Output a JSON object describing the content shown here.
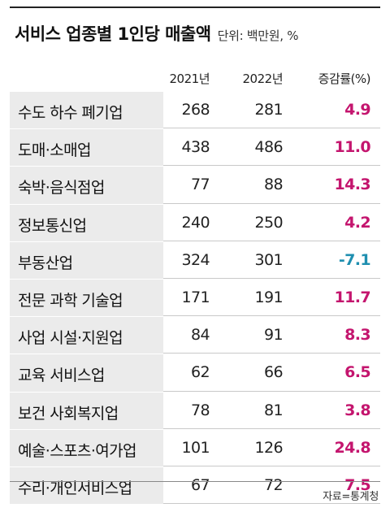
{
  "title": "서비스 업종별 1인당 매출액",
  "unit": "단위: 백만원, %",
  "source": "자료=통계청",
  "colors": {
    "positive": "#c4156e",
    "negative": "#1f8fb0",
    "row_shade": "#ebebeb"
  },
  "chart_data": {
    "type": "table",
    "title": "서비스 업종별 1인당 매출액",
    "columns": [
      "",
      "2021년",
      "2022년",
      "증감률(%)"
    ],
    "rows": [
      {
        "name": "수도 하수 폐기업",
        "y2021": "268",
        "y2022": "281",
        "rate": "4.9"
      },
      {
        "name": "도매·소매업",
        "y2021": "438",
        "y2022": "486",
        "rate": "11.0"
      },
      {
        "name": "숙박·음식점업",
        "y2021": "77",
        "y2022": "88",
        "rate": "14.3"
      },
      {
        "name": "정보통신업",
        "y2021": "240",
        "y2022": "250",
        "rate": "4.2"
      },
      {
        "name": "부동산업",
        "y2021": "324",
        "y2022": "301",
        "rate": "-7.1"
      },
      {
        "name": "전문 과학 기술업",
        "y2021": "171",
        "y2022": "191",
        "rate": "11.7"
      },
      {
        "name": "사업 시설·지원업",
        "y2021": "84",
        "y2022": "91",
        "rate": "8.3"
      },
      {
        "name": "교육 서비스업",
        "y2021": "62",
        "y2022": "66",
        "rate": "6.5"
      },
      {
        "name": "보건 사회복지업",
        "y2021": "78",
        "y2022": "81",
        "rate": "3.8"
      },
      {
        "name": "예술·스포츠·여가업",
        "y2021": "101",
        "y2022": "126",
        "rate": "24.8"
      },
      {
        "name": "수리·개인서비스업",
        "y2021": "67",
        "y2022": "72",
        "rate": "7.5"
      }
    ]
  }
}
